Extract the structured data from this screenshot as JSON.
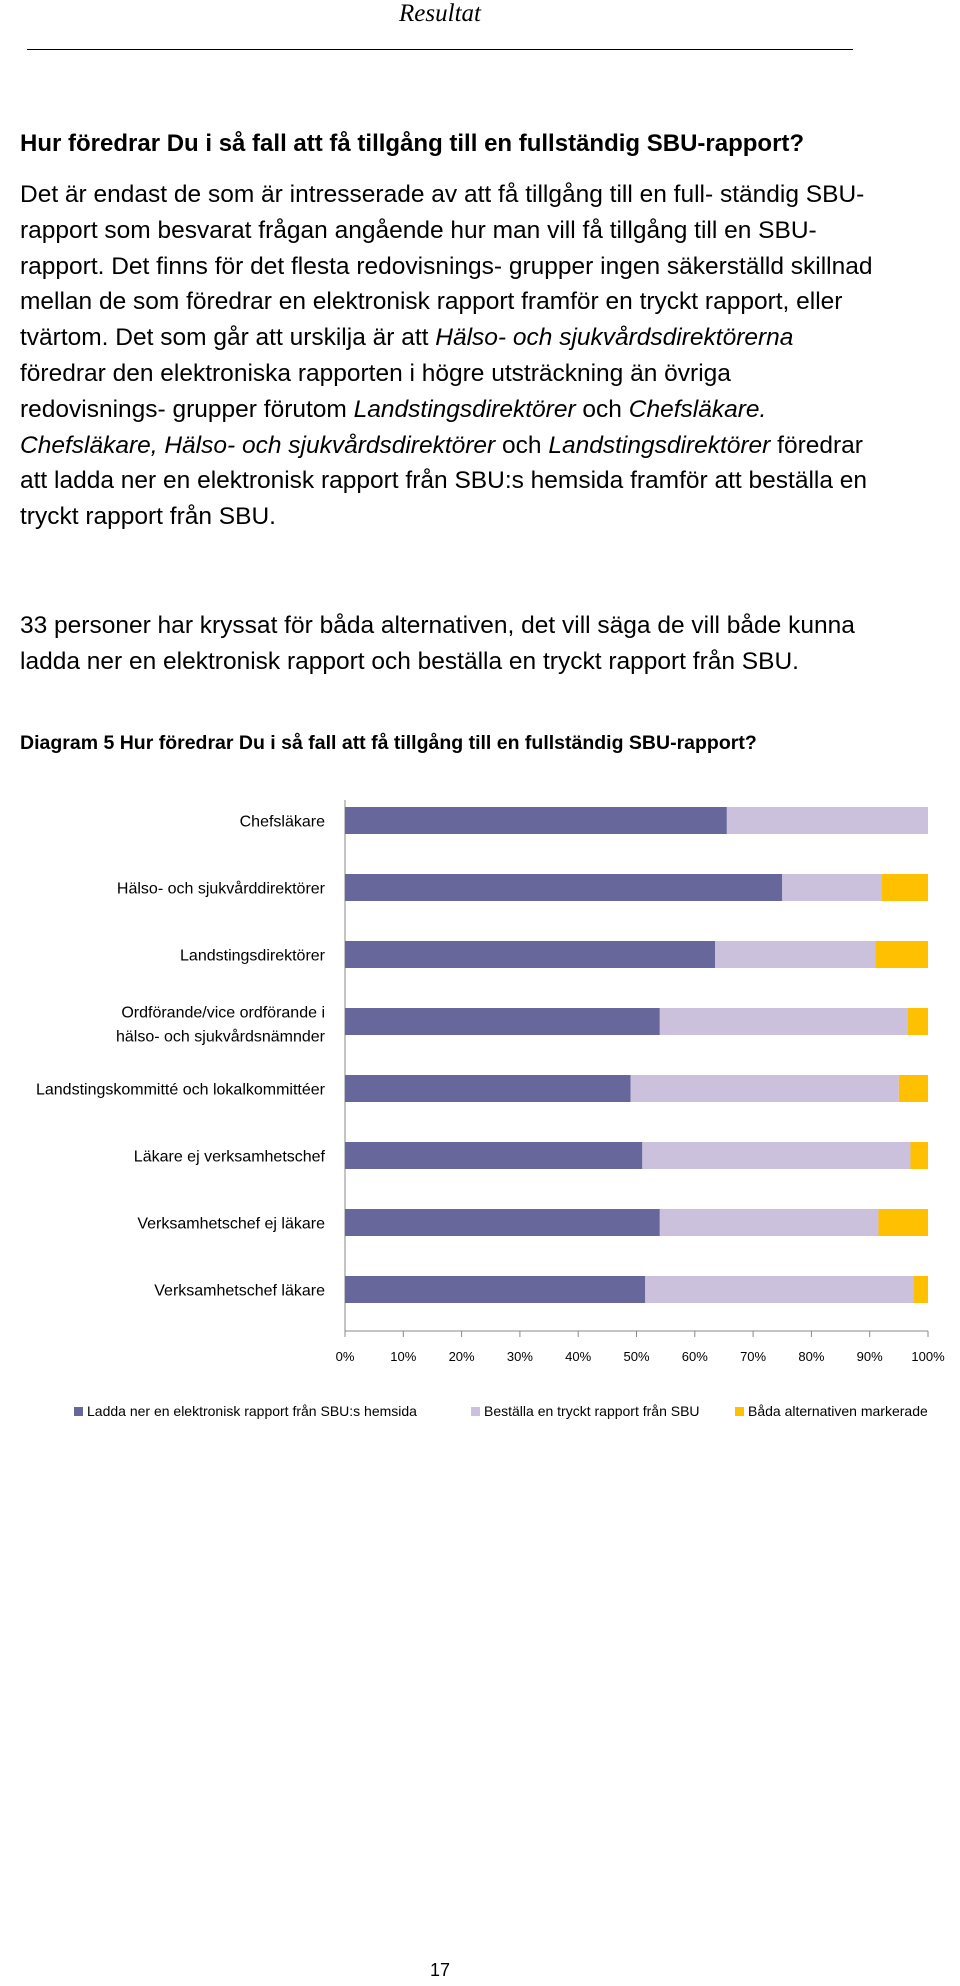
{
  "header": {
    "title": "Resultat"
  },
  "section": {
    "heading": "Hur föredrar Du i så fall att få tillgång till en fullständig SBU-rapport?",
    "p1": [
      {
        "t": "Det är endast de som är intresserade av att få tillgång till en full- ständig SBU-rapport som besvarat frågan angående hur man vill få tillgång till en SBU-rapport. Det finns för det flesta redovisnings- grupper ingen säkerställd skillnad mellan de som föredrar en elektronisk rapport framför en tryckt rapport, eller tvärtom. Det som går att urskilja är att "
      },
      {
        "t": "Hälso- och sjukvårdsdirektörerna",
        "i": true
      },
      {
        "t": " föredrar den elektroniska rapporten i högre utsträckning än övriga redovisnings- grupper förutom "
      },
      {
        "t": "Landstingsdirektörer",
        "i": true
      },
      {
        "t": " och "
      },
      {
        "t": "Chefsläkare. Chefsläkare, Hälso- och sjukvårdsdirektörer",
        "i": true
      },
      {
        "t": " och "
      },
      {
        "t": "Landstingsdirektörer",
        "i": true
      },
      {
        "t": " föredrar att ladda ner en elektronisk rapport från SBU:s hemsida framför att beställa en tryckt rapport från SBU."
      }
    ],
    "p2": "33 personer har kryssat för båda alternativen, det vill säga de vill både kunna ladda ner en elektronisk rapport och beställa en tryckt rapport från SBU."
  },
  "caption": "Diagram 5 Hur föredrar Du i så fall att få tillgång till en fullständig SBU-rapport?",
  "chart_data": {
    "type": "bar",
    "orientation": "horizontal",
    "stacked": "percent",
    "title": "",
    "categories": [
      "Chefsläkare",
      "Hälso- och sjukvårddirektörer",
      "Landstingsdirektörer",
      "Ordförande/vice ordförande i hälso- och sjukvårdsnämnder",
      "Landstingskommitté och lokalkommittéer",
      "Läkare ej verksamhetschef",
      "Verksamhetschef ej läkare",
      "Verksamhetschef läkare"
    ],
    "series": [
      {
        "name": "Ladda ner en elektronisk rapport från SBU:s hemsida",
        "color": "#67679b",
        "values": [
          65.5,
          75,
          63.5,
          54,
          49,
          51,
          54,
          51.5
        ]
      },
      {
        "name": "Beställa en tryckt rapport från SBU",
        "color": "#ccc1dd",
        "values": [
          34.5,
          17,
          27.5,
          42.5,
          46,
          46,
          37.5,
          46
        ]
      },
      {
        "name": "Båda alternativen markerade",
        "color": "#fec000",
        "values": [
          0,
          8,
          9,
          3.5,
          5,
          3,
          8.5,
          2.5
        ]
      }
    ],
    "xlim": [
      0,
      100
    ],
    "xticks": [
      "0%",
      "10%",
      "20%",
      "30%",
      "40%",
      "50%",
      "60%",
      "70%",
      "80%",
      "90%",
      "100%"
    ],
    "legend": "bottom",
    "grid": false
  },
  "page_number": "17"
}
